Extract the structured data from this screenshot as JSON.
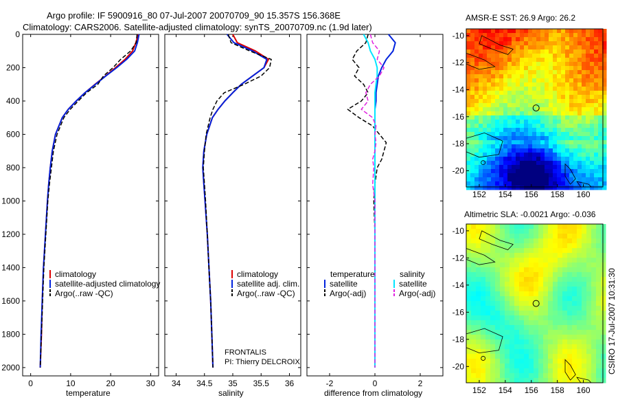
{
  "header": {
    "line1": "Argo profile: IF 5900916_80 07-Jul-2007 20070709_90 15.357S 156.368E",
    "line2": "Climatology: CARS2006. Satellite-adjusted climatology: synTS_20070709.nc (1.9d later)"
  },
  "side_label": "CSIRO 17-Jul-2007 10:31:30",
  "colors": {
    "climatology": "#dd0000",
    "satellite": "#0022dd",
    "argo": "#000000",
    "salinity_sat": "#00e5ff",
    "salinity_argo": "#e020e0"
  },
  "chart_data": [
    {
      "type": "line",
      "id": "temperature",
      "xlabel": "temperature",
      "ylabel": "",
      "xlim": [
        -2,
        32
      ],
      "ylim": [
        2050,
        0
      ],
      "xticks": [
        0,
        10,
        20,
        30
      ],
      "yticks": [
        0,
        200,
        400,
        600,
        800,
        1000,
        1200,
        1400,
        1600,
        1800,
        2000
      ],
      "legend": [
        "climatology",
        "satellite-adjusted climatology",
        "Argo(..raw -QC)"
      ],
      "depth": [
        0,
        50,
        100,
        150,
        200,
        250,
        300,
        350,
        400,
        450,
        500,
        600,
        700,
        800,
        900,
        1000,
        1200,
        1400,
        1600,
        1800,
        2000
      ],
      "series": [
        {
          "name": "climatology",
          "values": [
            26.9,
            26.3,
            25.5,
            23.6,
            21.2,
            18.7,
            16.1,
            13.6,
            11.4,
            9.4,
            7.9,
            6.2,
            5.4,
            4.9,
            4.5,
            4.2,
            3.7,
            3.2,
            2.9,
            2.7,
            2.4
          ]
        },
        {
          "name": "satellite-adjusted climatology",
          "values": [
            27.1,
            26.7,
            26.0,
            24.0,
            21.5,
            18.8,
            16.2,
            13.6,
            11.4,
            9.4,
            7.9,
            6.2,
            5.4,
            4.9,
            4.5,
            4.2,
            3.7,
            3.2,
            2.9,
            2.6,
            2.4
          ]
        },
        {
          "name": "Argo(..raw -QC)",
          "values": [
            26.6,
            26.4,
            25.0,
            22.5,
            20.6,
            18.2,
            16.8,
            14.0,
            11.9,
            9.9,
            8.3,
            6.6,
            5.7,
            5.2,
            4.7,
            4.3,
            3.8,
            3.3,
            3.0,
            2.7,
            2.4
          ]
        }
      ]
    },
    {
      "type": "line",
      "id": "salinity",
      "xlabel": "salinity",
      "xlim": [
        33.8,
        36.2
      ],
      "ylim": [
        2050,
        0
      ],
      "xticks": [
        34,
        34.5,
        35,
        35.5,
        36
      ],
      "legend": [
        "climatology",
        "satellite adj. clim.",
        "Argo(..raw -QC)"
      ],
      "annotation": [
        "FRONTALIS",
        "PI: Thierry DELCROIX"
      ],
      "depth": [
        0,
        50,
        100,
        150,
        200,
        250,
        300,
        350,
        400,
        450,
        500,
        600,
        700,
        800,
        900,
        1000,
        1200,
        1400,
        1600,
        1800,
        2000
      ],
      "series": [
        {
          "name": "climatology",
          "values": [
            35.0,
            35.08,
            35.4,
            35.63,
            35.55,
            35.35,
            35.15,
            35.0,
            34.86,
            34.74,
            34.64,
            34.54,
            34.49,
            34.47,
            34.49,
            34.51,
            34.55,
            34.58,
            34.61,
            34.63,
            34.65
          ]
        },
        {
          "name": "satellite adj. clim.",
          "values": [
            34.9,
            35.02,
            35.35,
            35.6,
            35.55,
            35.35,
            35.15,
            35.0,
            34.86,
            34.74,
            34.64,
            34.54,
            34.49,
            34.47,
            34.49,
            34.51,
            34.55,
            34.58,
            34.61,
            34.63,
            34.65
          ]
        },
        {
          "name": "Argo(..raw -QC)",
          "values": [
            34.92,
            34.97,
            35.3,
            35.68,
            35.65,
            35.5,
            35.2,
            34.85,
            34.72,
            34.65,
            34.6,
            34.53,
            34.5,
            34.48,
            34.5,
            34.52,
            34.55,
            34.58,
            34.61,
            34.63,
            34.65
          ]
        }
      ]
    },
    {
      "type": "line",
      "id": "difference",
      "xlabel": "difference from climatology",
      "xlim": [
        -3,
        3
      ],
      "ylim": [
        2050,
        0
      ],
      "xticks": [
        -2,
        0,
        2
      ],
      "legend_temperature": [
        "temperature",
        "satellite",
        "Argo(-adj)"
      ],
      "legend_salinity": [
        "salinity",
        "satellite",
        "Argo(-adj)"
      ],
      "depth": [
        0,
        50,
        100,
        150,
        200,
        250,
        300,
        350,
        400,
        450,
        500,
        550,
        600,
        650,
        700,
        750,
        800,
        900,
        1000,
        1200,
        1400,
        1600,
        1800,
        2000
      ],
      "series": [
        {
          "name": "temperature satellite",
          "values": [
            0.6,
            0.9,
            0.8,
            0.5,
            0.3,
            0.15,
            0.1,
            0.05,
            0.05,
            0.0,
            0.0,
            0.0,
            0.0,
            0.0,
            0.0,
            0.0,
            0.0,
            0.0,
            0.0,
            0.0,
            0.0,
            0.0,
            0.0,
            0.0
          ]
        },
        {
          "name": "temperature Argo(-adj)",
          "values": [
            -0.3,
            -0.4,
            -0.8,
            -1.0,
            -0.7,
            -0.9,
            -0.5,
            -0.3,
            -0.6,
            -1.2,
            -0.7,
            -0.1,
            0.2,
            0.5,
            0.4,
            0.3,
            0.1,
            0.0,
            -0.05,
            0.0,
            0.0,
            0.0,
            0.0,
            0.0
          ]
        },
        {
          "name": "salinity satellite",
          "values": [
            -0.5,
            -0.3,
            -0.2,
            0.0,
            0.1,
            0.1,
            0.05,
            0.0,
            0.0,
            0.0,
            0.0,
            0.0,
            0.0,
            0.0,
            0.0,
            0.0,
            0.0,
            0.0,
            0.0,
            0.0,
            0.0,
            0.0,
            0.0,
            0.0
          ]
        },
        {
          "name": "salinity Argo(-adj)",
          "values": [
            -0.2,
            -0.1,
            0.2,
            0.1,
            0.4,
            0.2,
            -0.2,
            -0.4,
            -0.3,
            -0.6,
            -0.1,
            0.05,
            0.0,
            0.05,
            0.0,
            -0.1,
            -0.05,
            -0.1,
            0.0,
            0.0,
            0.0,
            0.0,
            0.0,
            0.0
          ]
        }
      ]
    },
    {
      "type": "heatmap",
      "id": "sst-map",
      "title": "AMSR-E SST: 26.9 Argo: 26.2",
      "xlim": [
        151,
        161.5
      ],
      "ylim": [
        -21.2,
        -9.5
      ],
      "xticks": [
        152,
        154,
        156,
        158,
        160
      ],
      "yticks": [
        -10,
        -12,
        -14,
        -16,
        -18,
        -20
      ],
      "marker": [
        156.368,
        -15.357
      ]
    },
    {
      "type": "heatmap",
      "id": "sla-map",
      "title": "Altimetric SLA: -0.0021 Argo: -0.036",
      "xlim": [
        151,
        161.5
      ],
      "ylim": [
        -21.2,
        -9.5
      ],
      "xticks": [
        152,
        154,
        156,
        158,
        160
      ],
      "yticks": [
        -10,
        -12,
        -14,
        -16,
        -18,
        -20
      ],
      "marker": [
        156.368,
        -15.357
      ]
    }
  ]
}
